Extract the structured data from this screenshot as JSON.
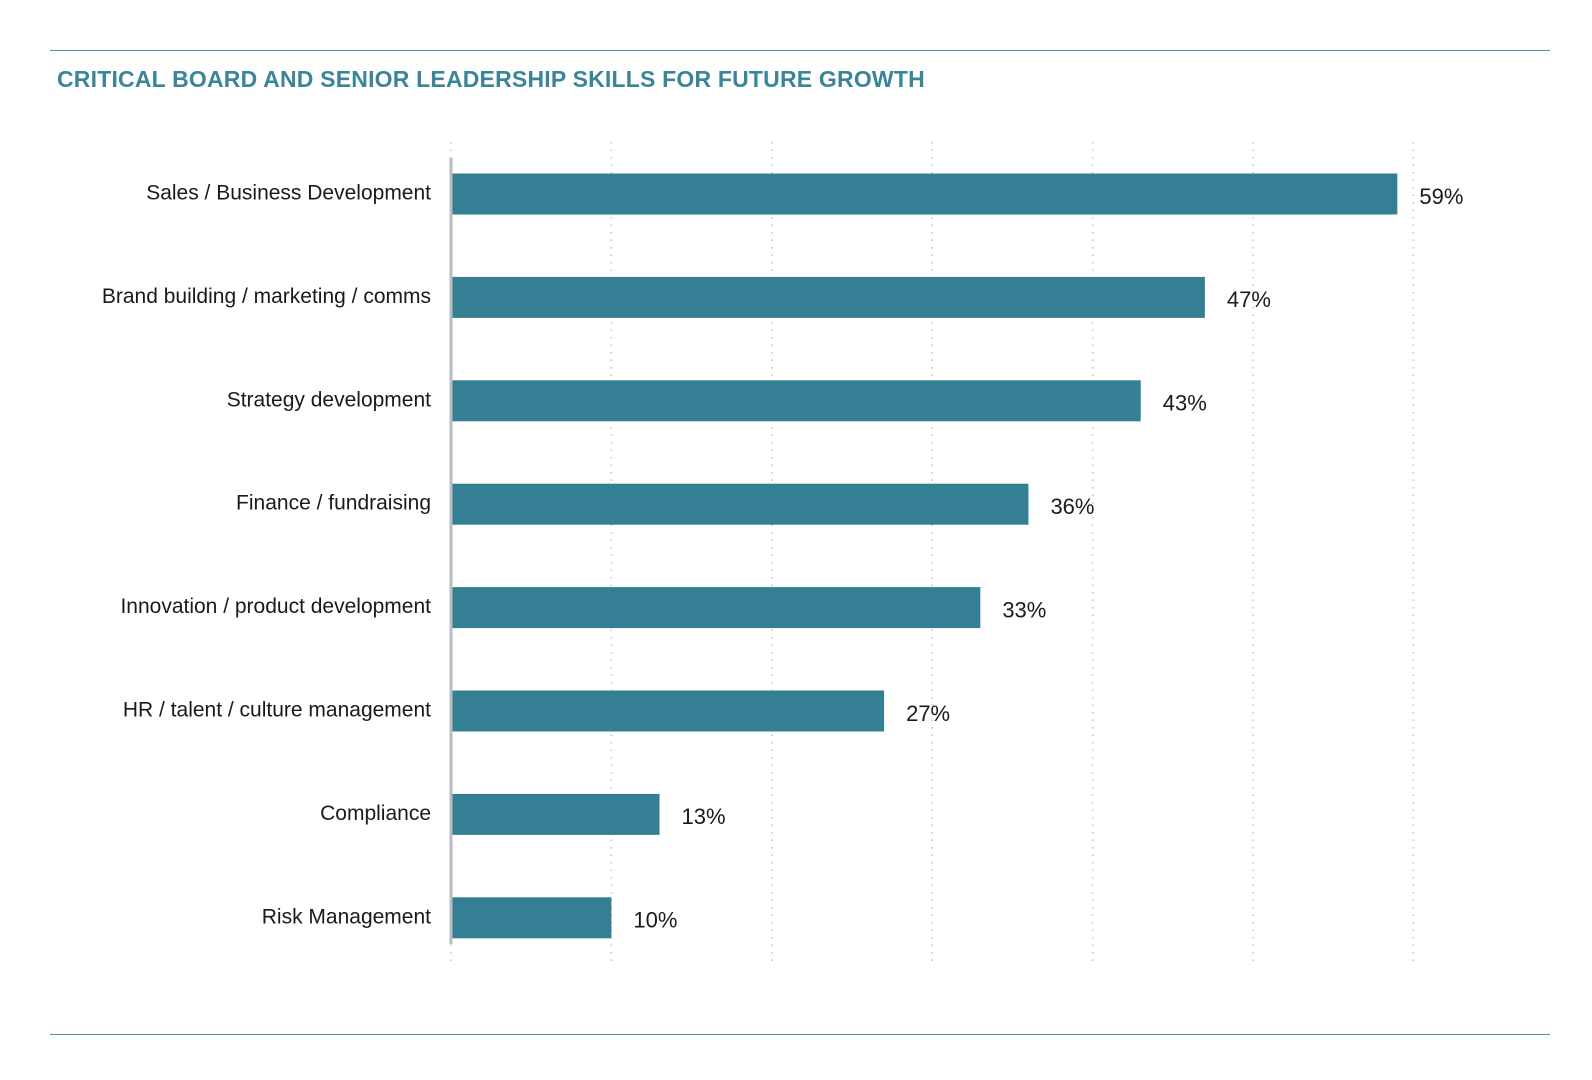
{
  "chart_data": {
    "type": "bar",
    "orientation": "horizontal",
    "title": "CRITICAL BOARD AND SENIOR LEADERSHIP SKILLS FOR FUTURE GROWTH",
    "categories": [
      "Sales / Business Development",
      "Brand building / marketing / comms",
      "Strategy development",
      "Finance / fundraising",
      "Innovation / product development",
      "HR / talent / culture management",
      "Compliance",
      "Risk Management"
    ],
    "values": [
      59,
      47,
      43,
      36,
      33,
      27,
      13,
      10
    ],
    "value_labels": [
      "59%",
      "47%",
      "43%",
      "36%",
      "33%",
      "27%",
      "13%",
      "10%"
    ],
    "unit": "%",
    "xlim": [
      0,
      60
    ],
    "grid": "vertical dotted",
    "bar_color": "#347f94",
    "title_color": "#3a8597"
  }
}
